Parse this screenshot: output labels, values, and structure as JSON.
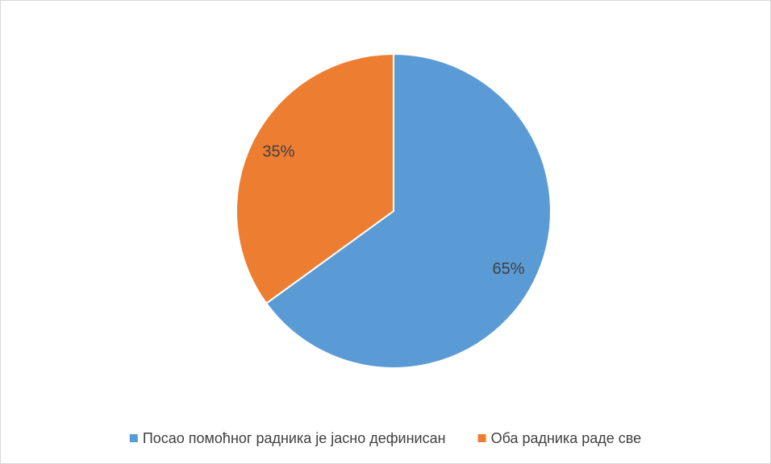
{
  "chart_data": {
    "type": "pie",
    "categories": [
      "Посао помоћног радника је јасно дефинисан",
      "Оба радника раде све"
    ],
    "values": [
      65,
      35
    ],
    "value_labels": [
      "65%",
      "35%"
    ],
    "colors": [
      "#5b9bd5",
      "#ed7d31"
    ],
    "legend": "bottom"
  }
}
